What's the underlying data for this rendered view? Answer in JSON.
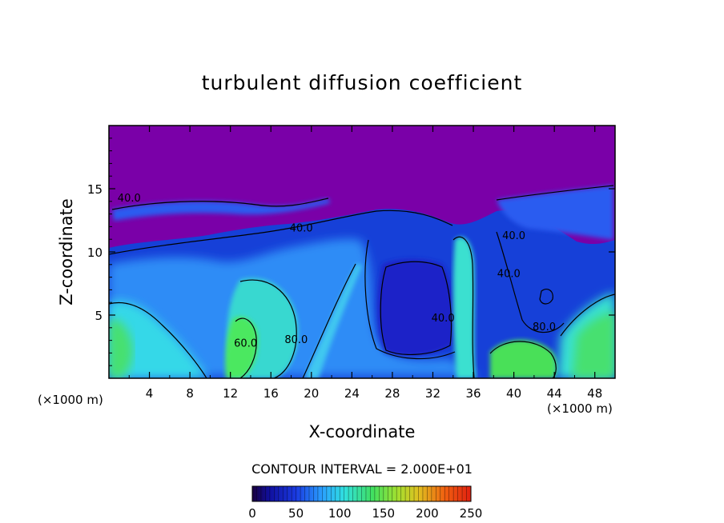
{
  "chart_data": {
    "type": "heatmap",
    "title": "turbulent diffusion coefficient",
    "xlabel": "X-coordinate",
    "ylabel": "Z-coordinate",
    "x_unit_left": "(×1000 m)",
    "x_unit_right": "(×1000 m)",
    "xlim": [
      0,
      50
    ],
    "ylim": [
      0,
      20
    ],
    "x_ticks": [
      "4",
      "8",
      "12",
      "16",
      "20",
      "24",
      "28",
      "32",
      "36",
      "40",
      "44",
      "48"
    ],
    "y_ticks": [
      "5",
      "10",
      "15"
    ],
    "contour_interval_text": "CONTOUR INTERVAL = 2.000E+01",
    "contour_interval": 20,
    "contour_labels": [
      {
        "text": "40.0",
        "x": 2,
        "z": 14
      },
      {
        "text": "40.0",
        "x": 19,
        "z": 11.6
      },
      {
        "text": "40.0",
        "x": 33,
        "z": 4.5
      },
      {
        "text": "40.0",
        "x": 39.5,
        "z": 8
      },
      {
        "text": "60.0",
        "x": 13.5,
        "z": 2.5
      },
      {
        "text": "80.0",
        "x": 18.5,
        "z": 2.8
      },
      {
        "text": "80.0",
        "x": 43,
        "z": 3.8
      },
      {
        "text": "40.0",
        "x": 40,
        "z": 11
      }
    ],
    "colorbar": {
      "min": 0,
      "max": 250,
      "tick_labels": [
        "0",
        "50",
        "100",
        "150",
        "200",
        "250"
      ]
    },
    "colors": {
      "background_top": "#7a00a8",
      "deep_blue": "#1a1ad8",
      "mid_blue": "#2a6af0",
      "light_blue": "#3ab0ff",
      "cyan": "#2fe0e0",
      "green": "#40e860"
    }
  }
}
